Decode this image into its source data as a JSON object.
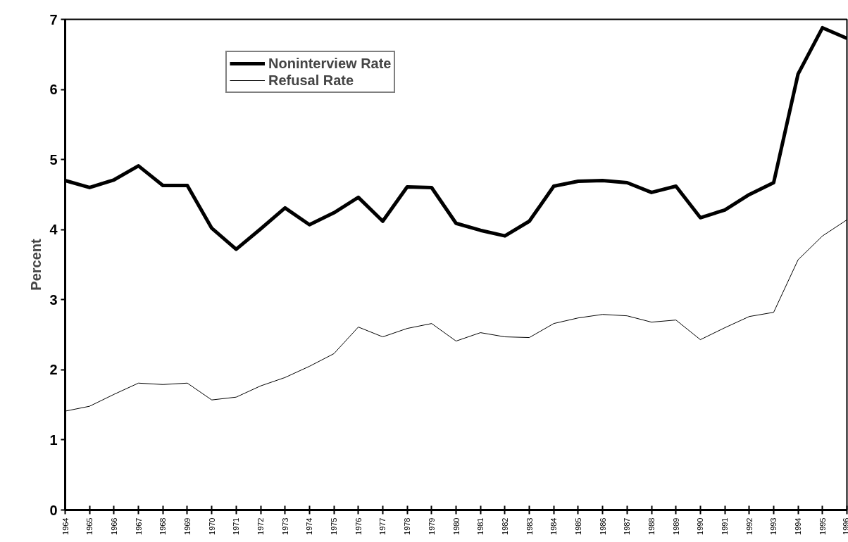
{
  "chart_data": {
    "type": "line",
    "ylabel": "Percent",
    "x": [
      1964,
      1965,
      1966,
      1967,
      1968,
      1969,
      1970,
      1971,
      1972,
      1973,
      1974,
      1975,
      1976,
      1977,
      1978,
      1979,
      1980,
      1981,
      1982,
      1983,
      1984,
      1985,
      1986,
      1987,
      1988,
      1989,
      1990,
      1991,
      1992,
      1993,
      1994,
      1995,
      1996
    ],
    "series": [
      {
        "name": "Noninterview Rate",
        "color": "#000000",
        "values": [
          4.7,
          4.6,
          4.71,
          4.91,
          4.63,
          4.63,
          4.02,
          3.72,
          4.01,
          4.31,
          4.07,
          4.24,
          4.46,
          4.12,
          4.61,
          4.6,
          4.09,
          3.99,
          3.91,
          4.12,
          4.62,
          4.69,
          4.7,
          4.67,
          4.53,
          4.62,
          4.17,
          4.28,
          4.5,
          4.67,
          6.22,
          6.88,
          6.73
        ]
      },
      {
        "name": "Refusal Rate",
        "color": "#000000",
        "values": [
          1.41,
          1.48,
          1.65,
          1.81,
          1.79,
          1.81,
          1.57,
          1.61,
          1.77,
          1.89,
          2.05,
          2.23,
          2.61,
          2.47,
          2.59,
          2.66,
          2.41,
          2.53,
          2.47,
          2.46,
          2.66,
          2.74,
          2.79,
          2.77,
          2.68,
          2.71,
          2.43,
          2.6,
          2.76,
          2.82,
          3.57,
          3.91,
          4.14
        ]
      }
    ],
    "xlim": [
      1964,
      1996
    ],
    "xticks": [
      1964,
      1965,
      1966,
      1967,
      1968,
      1969,
      1970,
      1971,
      1972,
      1973,
      1974,
      1975,
      1976,
      1977,
      1978,
      1979,
      1980,
      1981,
      1982,
      1983,
      1984,
      1985,
      1986,
      1987,
      1988,
      1989,
      1990,
      1991,
      1992,
      1993,
      1994,
      1995,
      1996
    ],
    "ylim": [
      0,
      7
    ],
    "yticks": [
      0,
      1,
      2,
      3,
      4,
      5,
      6,
      7
    ],
    "grid": false,
    "legend": "top left",
    "marker": "none",
    "line_style": "solid"
  }
}
